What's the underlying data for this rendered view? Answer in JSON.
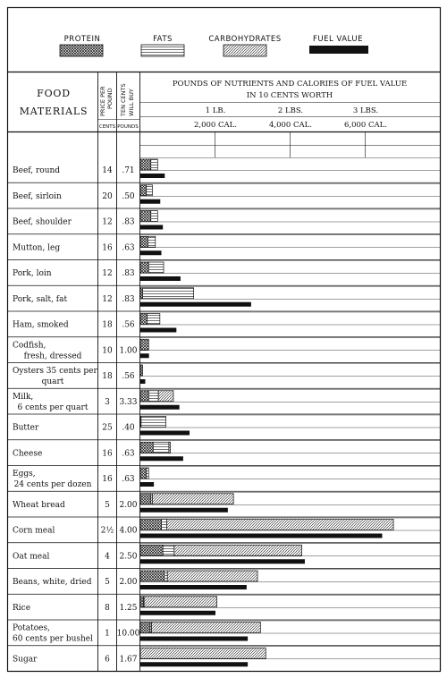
{
  "legend": {
    "protein": "PROTEIN",
    "fats": "FATS",
    "carbohydrates": "CARBOHYDRATES",
    "fuel_value": "FUEL VALUE"
  },
  "header": {
    "food_materials_line1": "FOOD",
    "food_materials_line2": "MATERIALS",
    "price_col_line1": "PRICE PER",
    "price_col_line2": "POUND",
    "price_units": "CENTS",
    "buy_col_line1": "TEN CENTS",
    "buy_col_line2": "WILL BUY",
    "buy_units": "POUNDS",
    "title_line1": "POUNDS OF NUTRIENTS AND CALORIES OF FUEL VALUE",
    "title_line2": "IN 10 CENTS WORTH",
    "scale_lb": [
      "1 LB.",
      "2 LBS.",
      "3 LBS."
    ],
    "scale_cal": [
      "2,000 CAL.",
      "4,000 CAL.",
      "6,000 CAL."
    ]
  },
  "colors": {
    "ink": "#111111",
    "paper": "#ffffff"
  },
  "chart_data": {
    "type": "bar",
    "title": "POUNDS OF NUTRIENTS AND CALORIES OF FUEL VALUE IN 10 CENTS WORTH",
    "xlim_pounds": [
      0,
      4
    ],
    "xlim_calories": [
      0,
      8000
    ],
    "stacking": "protein, fats, carbohydrates stacked in pounds; fuel value as separate bar in calories",
    "rows": [
      {
        "name": "Beef, round",
        "price": "14",
        "buys": ".71",
        "protein": 0.14,
        "fat": 0.09,
        "carb": 0,
        "fuel": 650
      },
      {
        "name": "Beef, sirloin",
        "price": "20",
        "buys": ".50",
        "protein": 0.08,
        "fat": 0.08,
        "carb": 0,
        "fuel": 530
      },
      {
        "name": "Beef, shoulder",
        "price": "12",
        "buys": ".83",
        "protein": 0.14,
        "fat": 0.09,
        "carb": 0,
        "fuel": 600
      },
      {
        "name": "Mutton, leg",
        "price": "16",
        "buys": ".63",
        "protein": 0.1,
        "fat": 0.1,
        "carb": 0,
        "fuel": 560
      },
      {
        "name": "Pork, loin",
        "price": "12",
        "buys": ".83",
        "protein": 0.11,
        "fat": 0.2,
        "carb": 0,
        "fuel": 1070
      },
      {
        "name": "Pork, salt, fat",
        "price": "12",
        "buys": ".83",
        "protein": 0.03,
        "fat": 0.68,
        "carb": 0,
        "fuel": 2950
      },
      {
        "name": "Ham, smoked",
        "price": "18",
        "buys": ".56",
        "protein": 0.09,
        "fat": 0.17,
        "carb": 0,
        "fuel": 960
      },
      {
        "name": "Codfish, fresh, dressed",
        "price": "10",
        "buys": "1.00",
        "protein": 0.11,
        "fat": 0,
        "carb": 0,
        "fuel": 230
      },
      {
        "name": "Oysters 35 cents per quart",
        "price": "18",
        "buys": ".56",
        "protein": 0.03,
        "fat": 0,
        "carb": 0,
        "fuel": 130
      },
      {
        "name": "Milk, 6 cents per quart",
        "price": "3",
        "buys": "3.33",
        "protein": 0.11,
        "fat": 0.13,
        "carb": 0.2,
        "fuel": 1040
      },
      {
        "name": "Butter",
        "price": "25",
        "buys": ".40",
        "protein": 0.01,
        "fat": 0.33,
        "carb": 0,
        "fuel": 1310
      },
      {
        "name": "Cheese",
        "price": "16",
        "buys": ".63",
        "protein": 0.17,
        "fat": 0.21,
        "carb": 0.02,
        "fuel": 1140
      },
      {
        "name": "Eggs, 24 cents per dozen",
        "price": "16",
        "buys": ".63",
        "protein": 0.08,
        "fat": 0.03,
        "carb": 0,
        "fuel": 360
      },
      {
        "name": "Wheat bread",
        "price": "5",
        "buys": "2.00",
        "protein": 0.14,
        "fat": 0.02,
        "carb": 1.08,
        "fuel": 2330
      },
      {
        "name": "Corn meal",
        "price": "2½",
        "buys": "4.00",
        "protein": 0.28,
        "fat": 0.07,
        "carb": 3.02,
        "fuel": 6440
      },
      {
        "name": "Oat meal",
        "price": "4",
        "buys": "2.50",
        "protein": 0.3,
        "fat": 0.15,
        "carb": 1.7,
        "fuel": 4380
      },
      {
        "name": "Beans, white, dried",
        "price": "5",
        "buys": "2.00",
        "protein": 0.32,
        "fat": 0.04,
        "carb": 1.2,
        "fuel": 2830
      },
      {
        "name": "Rice",
        "price": "8",
        "buys": "1.25",
        "protein": 0.04,
        "fat": 0.01,
        "carb": 0.97,
        "fuel": 2000
      },
      {
        "name": "Potatoes, 60 cents per bushel",
        "price": "1",
        "buys": "10.00",
        "protein": 0.13,
        "fat": 0.02,
        "carb": 1.45,
        "fuel": 2860
      },
      {
        "name": "Sugar",
        "price": "6",
        "buys": "1.67",
        "protein": 0,
        "fat": 0,
        "carb": 1.67,
        "fuel": 2860
      }
    ]
  }
}
